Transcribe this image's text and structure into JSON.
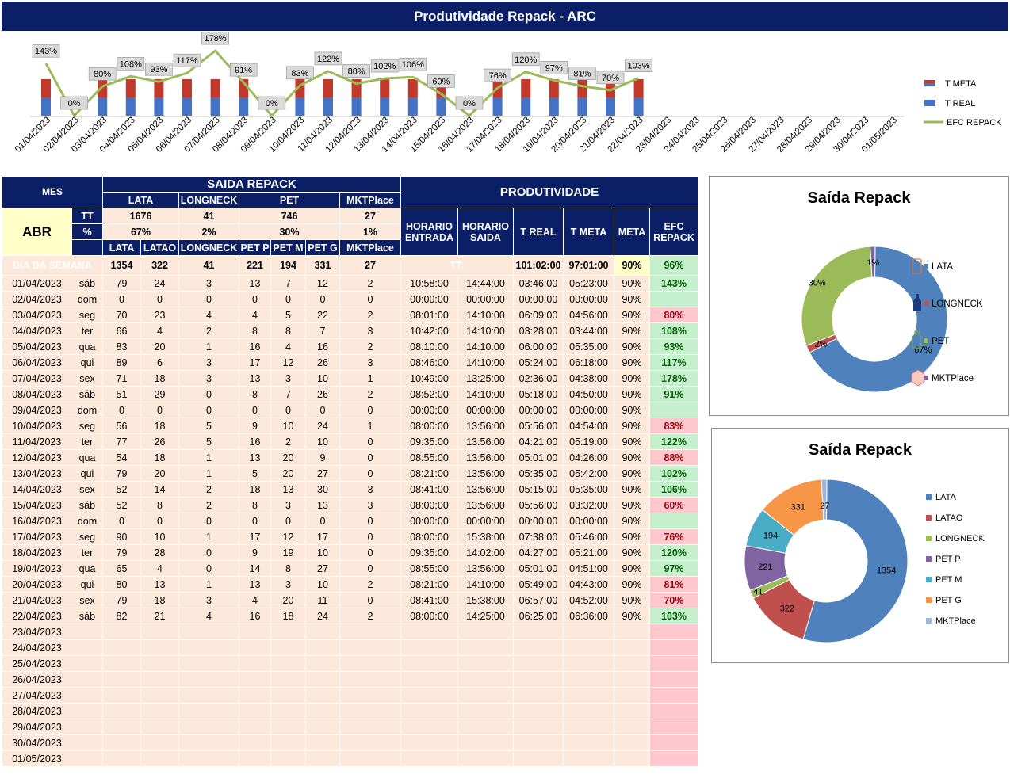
{
  "title": "Produtividade Repack - ARC",
  "top_chart": {
    "legend": {
      "t_meta": "T META",
      "t_real": "T REAL",
      "efc": "EFC REPACK"
    },
    "colors": {
      "meta": "#c0392b",
      "real": "#4472c4",
      "efc": "#9bbb59"
    },
    "dates": [
      "01/04/2023",
      "02/04/2023",
      "03/04/2023",
      "04/04/2023",
      "05/04/2023",
      "06/04/2023",
      "07/04/2023",
      "08/04/2023",
      "09/04/2023",
      "10/04/2023",
      "11/04/2023",
      "12/04/2023",
      "13/04/2023",
      "14/04/2023",
      "15/04/2023",
      "16/04/2023",
      "17/04/2023",
      "18/04/2023",
      "19/04/2023",
      "20/04/2023",
      "21/04/2023",
      "22/04/2023",
      "23/04/2023",
      "24/04/2023",
      "25/04/2023",
      "26/04/2023",
      "27/04/2023",
      "28/04/2023",
      "29/04/2023",
      "30/04/2023",
      "01/05/2023"
    ],
    "efc_values": [
      143,
      0,
      80,
      108,
      93,
      117,
      178,
      91,
      0,
      83,
      122,
      88,
      102,
      106,
      60,
      0,
      76,
      120,
      97,
      81,
      70,
      103
    ],
    "efc_labels": [
      "143%",
      "0%",
      "80%",
      "108%",
      "93%",
      "117%",
      "178%",
      "91%",
      "0%",
      "83%",
      "122%",
      "88%",
      "102%",
      "106%",
      "60%",
      "0%",
      "76%",
      "120%",
      "97%",
      "81%",
      "70%",
      "103%"
    ],
    "bar_days": [
      0,
      2,
      3,
      4,
      5,
      6,
      7,
      9,
      10,
      11,
      12,
      13,
      14,
      16,
      17,
      18,
      19,
      20,
      21
    ]
  },
  "table": {
    "headers": {
      "mes": "MES",
      "saida_repack": "SAIDA REPACK",
      "lata": "LATA",
      "longneck": "LONGNECK",
      "pet": "PET",
      "mktplace": "MKTPlace",
      "produtividade": "PRODUTIVIDADE",
      "horario_entrada": [
        "HORARIO",
        "ENTRADA"
      ],
      "horario_saida": [
        "HORARIO",
        "SAIDA"
      ],
      "t_real": "T REAL",
      "t_meta": "T META",
      "meta": "META",
      "efc_repack": [
        "EFC",
        "REPACK"
      ],
      "abr": "ABR",
      "tt": "TT",
      "pct": "%",
      "sub": [
        "LATA",
        "LATAO",
        "LONGNECK",
        "PET P",
        "PET M",
        "PET G",
        "MKTPlace"
      ],
      "dia_semana": "DIA DA SEMANA",
      "tt_label": "TT:"
    },
    "tt_values": {
      "lata": "1676",
      "longneck": "41",
      "pet": "746",
      "mkt": "27"
    },
    "pct_values": {
      "lata": "67%",
      "longneck": "2%",
      "pet": "30%",
      "mkt": "1%"
    },
    "totals": {
      "lata": "1354",
      "latao": "322",
      "longneck": "41",
      "pet_p": "221",
      "pet_m": "194",
      "pet_g": "331",
      "mkt": "27",
      "t_real": "101:02:00",
      "t_meta": "97:01:00",
      "meta": "90%",
      "efc": "96%"
    },
    "rows": [
      [
        "01/04/2023",
        "sáb",
        "79",
        "24",
        "3",
        "13",
        "7",
        "12",
        "2",
        "10:58:00",
        "14:44:00",
        "03:46:00",
        "05:23:00",
        "90%",
        "143%",
        "g"
      ],
      [
        "02/04/2023",
        "dom",
        "0",
        "0",
        "0",
        "0",
        "0",
        "0",
        "0",
        "00:00:00",
        "00:00:00",
        "00:00:00",
        "00:00:00",
        "90%",
        "",
        "e"
      ],
      [
        "03/04/2023",
        "seg",
        "70",
        "23",
        "4",
        "4",
        "5",
        "22",
        "2",
        "08:01:00",
        "14:10:00",
        "06:09:00",
        "04:56:00",
        "90%",
        "80%",
        "r"
      ],
      [
        "04/04/2023",
        "ter",
        "66",
        "4",
        "2",
        "8",
        "8",
        "7",
        "3",
        "10:42:00",
        "14:10:00",
        "03:28:00",
        "03:44:00",
        "90%",
        "108%",
        "g"
      ],
      [
        "05/04/2023",
        "qua",
        "83",
        "20",
        "1",
        "16",
        "4",
        "16",
        "2",
        "08:10:00",
        "14:10:00",
        "06:00:00",
        "05:35:00",
        "90%",
        "93%",
        "g"
      ],
      [
        "06/04/2023",
        "qui",
        "89",
        "6",
        "3",
        "17",
        "12",
        "26",
        "3",
        "08:46:00",
        "14:10:00",
        "05:24:00",
        "06:18:00",
        "90%",
        "117%",
        "g"
      ],
      [
        "07/04/2023",
        "sex",
        "71",
        "18",
        "3",
        "13",
        "3",
        "10",
        "1",
        "10:49:00",
        "13:25:00",
        "02:36:00",
        "04:38:00",
        "90%",
        "178%",
        "g"
      ],
      [
        "08/04/2023",
        "sáb",
        "51",
        "29",
        "0",
        "8",
        "7",
        "26",
        "2",
        "08:52:00",
        "14:10:00",
        "05:18:00",
        "04:50:00",
        "90%",
        "91%",
        "g"
      ],
      [
        "09/04/2023",
        "dom",
        "0",
        "0",
        "0",
        "0",
        "0",
        "0",
        "0",
        "00:00:00",
        "00:00:00",
        "00:00:00",
        "00:00:00",
        "90%",
        "",
        "e"
      ],
      [
        "10/04/2023",
        "seg",
        "56",
        "18",
        "5",
        "9",
        "10",
        "24",
        "1",
        "08:00:00",
        "13:56:00",
        "05:56:00",
        "04:54:00",
        "90%",
        "83%",
        "r"
      ],
      [
        "11/04/2023",
        "ter",
        "77",
        "26",
        "5",
        "16",
        "2",
        "10",
        "0",
        "09:35:00",
        "13:56:00",
        "04:21:00",
        "05:19:00",
        "90%",
        "122%",
        "g"
      ],
      [
        "12/04/2023",
        "qua",
        "54",
        "18",
        "1",
        "13",
        "20",
        "9",
        "0",
        "08:55:00",
        "13:56:00",
        "05:01:00",
        "04:26:00",
        "90%",
        "88%",
        "r"
      ],
      [
        "13/04/2023",
        "qui",
        "79",
        "20",
        "1",
        "5",
        "20",
        "27",
        "0",
        "08:21:00",
        "13:56:00",
        "05:35:00",
        "05:42:00",
        "90%",
        "102%",
        "g"
      ],
      [
        "14/04/2023",
        "sex",
        "52",
        "14",
        "2",
        "18",
        "13",
        "30",
        "3",
        "08:41:00",
        "13:56:00",
        "05:15:00",
        "05:35:00",
        "90%",
        "106%",
        "g"
      ],
      [
        "15/04/2023",
        "sáb",
        "52",
        "8",
        "2",
        "8",
        "3",
        "13",
        "3",
        "08:00:00",
        "13:56:00",
        "05:56:00",
        "03:32:00",
        "90%",
        "60%",
        "r"
      ],
      [
        "16/04/2023",
        "dom",
        "0",
        "0",
        "0",
        "0",
        "0",
        "0",
        "0",
        "00:00:00",
        "00:00:00",
        "00:00:00",
        "00:00:00",
        "90%",
        "",
        "e"
      ],
      [
        "17/04/2023",
        "seg",
        "90",
        "10",
        "1",
        "17",
        "12",
        "17",
        "0",
        "08:00:00",
        "15:38:00",
        "07:38:00",
        "05:46:00",
        "90%",
        "76%",
        "r"
      ],
      [
        "18/04/2023",
        "ter",
        "79",
        "28",
        "0",
        "9",
        "19",
        "10",
        "0",
        "09:35:00",
        "14:02:00",
        "04:27:00",
        "05:21:00",
        "90%",
        "120%",
        "g"
      ],
      [
        "19/04/2023",
        "qua",
        "65",
        "4",
        "0",
        "14",
        "8",
        "27",
        "0",
        "08:55:00",
        "13:56:00",
        "05:01:00",
        "04:51:00",
        "90%",
        "97%",
        "g"
      ],
      [
        "20/04/2023",
        "qui",
        "80",
        "13",
        "1",
        "13",
        "3",
        "10",
        "2",
        "08:21:00",
        "14:10:00",
        "05:49:00",
        "04:43:00",
        "90%",
        "81%",
        "r"
      ],
      [
        "21/04/2023",
        "sex",
        "79",
        "18",
        "3",
        "4",
        "20",
        "11",
        "0",
        "08:41:00",
        "15:38:00",
        "06:57:00",
        "04:52:00",
        "90%",
        "70%",
        "r"
      ],
      [
        "22/04/2023",
        "sáb",
        "82",
        "21",
        "4",
        "16",
        "18",
        "24",
        "2",
        "08:00:00",
        "14:25:00",
        "06:25:00",
        "06:36:00",
        "90%",
        "103%",
        "g"
      ]
    ],
    "empty_dates": [
      "23/04/2023",
      "24/04/2023",
      "25/04/2023",
      "26/04/2023",
      "27/04/2023",
      "28/04/2023",
      "29/04/2023",
      "30/04/2023",
      "01/05/2023"
    ]
  },
  "donut1": {
    "title": "Saída Repack",
    "labels": [
      "LATA",
      "LONGNECK",
      "PET",
      "MKTPlace"
    ],
    "values": [
      1676,
      41,
      746,
      27
    ],
    "pct_labels": [
      "67%",
      "2%",
      "30%",
      "1%"
    ],
    "colors": [
      "#4f81bd",
      "#c0504d",
      "#9bbb59",
      "#8064a2"
    ],
    "icons": [
      "can-icon",
      "bottle-icon",
      "pet-bottle-icon",
      "box-icon"
    ]
  },
  "donut2": {
    "title": "Saída Repack",
    "labels": [
      "LATA",
      "LATAO",
      "LONGNECK",
      "PET P",
      "PET M",
      "PET G",
      "MKTPlace"
    ],
    "values": [
      1354,
      322,
      41,
      221,
      194,
      331,
      27
    ],
    "value_labels": [
      "1354",
      "322",
      "41",
      "221",
      "194",
      "331",
      "27"
    ],
    "colors": [
      "#4f81bd",
      "#c0504d",
      "#9bbb59",
      "#8064a2",
      "#4bacc6",
      "#f79646",
      "#9fb5d8"
    ]
  }
}
